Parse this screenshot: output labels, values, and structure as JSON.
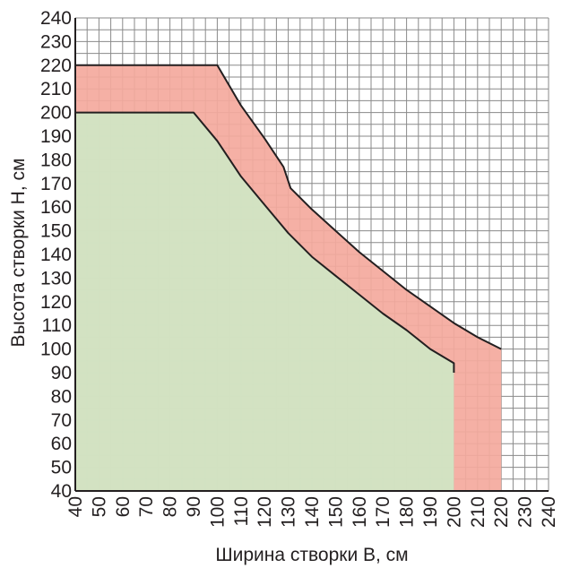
{
  "chart_data": {
    "type": "area",
    "xlabel": "Ширина створки B, см",
    "ylabel": "Высота створки H, см",
    "xlim": [
      40,
      240
    ],
    "ylim": [
      40,
      240
    ],
    "xticks": [
      40,
      50,
      60,
      70,
      80,
      90,
      100,
      110,
      120,
      130,
      140,
      150,
      160,
      170,
      180,
      190,
      200,
      210,
      220,
      230,
      240
    ],
    "yticks": [
      40,
      50,
      60,
      70,
      80,
      90,
      100,
      110,
      120,
      130,
      140,
      150,
      160,
      170,
      180,
      190,
      200,
      210,
      220,
      230,
      240
    ],
    "grid": true,
    "series": [
      {
        "color": "#f4a99d",
        "points": [
          [
            40,
            40
          ],
          [
            40,
            220
          ],
          [
            100,
            220
          ],
          [
            110,
            203
          ],
          [
            120,
            189
          ],
          [
            128,
            177
          ],
          [
            131,
            168
          ],
          [
            140,
            159
          ],
          [
            150,
            150
          ],
          [
            160,
            141
          ],
          [
            170,
            133
          ],
          [
            180,
            125
          ],
          [
            190,
            118
          ],
          [
            200,
            111
          ],
          [
            210,
            105
          ],
          [
            220,
            100
          ],
          [
            220,
            40
          ]
        ]
      },
      {
        "color": "#cfe6c4",
        "points": [
          [
            40,
            40
          ],
          [
            40,
            200
          ],
          [
            90,
            200
          ],
          [
            100,
            188
          ],
          [
            110,
            173
          ],
          [
            120,
            161
          ],
          [
            130,
            149
          ],
          [
            140,
            139
          ],
          [
            150,
            131
          ],
          [
            160,
            123
          ],
          [
            170,
            115
          ],
          [
            180,
            108
          ],
          [
            190,
            100
          ],
          [
            200,
            94
          ],
          [
            200,
            90
          ],
          [
            200,
            40
          ]
        ]
      }
    ]
  }
}
